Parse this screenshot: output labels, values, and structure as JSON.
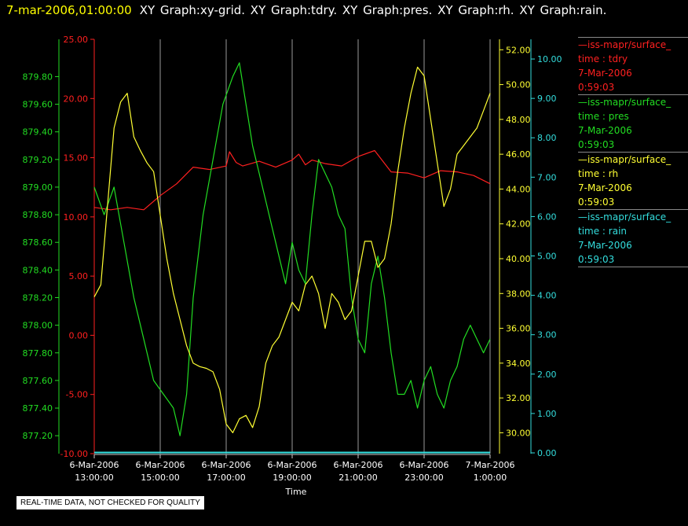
{
  "header": {
    "timestamp": "7-mar-2006,01:00:00",
    "graphs": "XY Graph:xy-grid.  XY Graph:tdry.  XY Graph:pres.  XY Graph:rh.  XY Graph:rain."
  },
  "quality_note": "REAL-TIME DATA, NOT CHECKED FOR QUALITY",
  "legend": [
    {
      "name": "iss-mapr/surface_",
      "field": "time : tdry",
      "date": "7-Mar-2006",
      "time": "0:59:03",
      "color": "#ff2020"
    },
    {
      "name": "iss-mapr/surface_",
      "field": "time : pres",
      "date": "7-Mar-2006",
      "time": "0:59:03",
      "color": "#22dd22"
    },
    {
      "name": "iss-mapr/surface_",
      "field": "time : rh",
      "date": "7-Mar-2006",
      "time": "0:59:03",
      "color": "#ffff33"
    },
    {
      "name": "iss-mapr/surface_",
      "field": "time : rain",
      "date": "7-Mar-2006",
      "time": "0:59:03",
      "color": "#33dddd"
    }
  ],
  "chart_data": {
    "type": "line",
    "xlabel": "Time",
    "x_ticks": [
      {
        "date": "6-Mar-2006",
        "time": "13:00:00"
      },
      {
        "date": "6-Mar-2006",
        "time": "15:00:00"
      },
      {
        "date": "6-Mar-2006",
        "time": "17:00:00"
      },
      {
        "date": "6-Mar-2006",
        "time": "19:00:00"
      },
      {
        "date": "6-Mar-2006",
        "time": "21:00:00"
      },
      {
        "date": "6-Mar-2006",
        "time": "23:00:00"
      },
      {
        "date": "7-Mar-2006",
        "time": "1:00:00"
      }
    ],
    "xlim_hours": [
      13,
      25
    ],
    "grid": "vertical",
    "axes": {
      "pres": {
        "color": "#22dd22",
        "ylim": [
          877.07,
          880.07
        ],
        "ticks": [
          "877.20",
          "877.40",
          "877.60",
          "877.80",
          "878.00",
          "878.20",
          "878.40",
          "878.60",
          "878.80",
          "879.00",
          "879.20",
          "879.40",
          "879.60",
          "879.80"
        ]
      },
      "tdry": {
        "color": "#ff2020",
        "ylim": [
          -10,
          25
        ],
        "ticks": [
          "-10.00",
          "-5.00",
          "0.00",
          "5.00",
          "10.00",
          "15.00",
          "20.00",
          "25.00"
        ]
      },
      "rh": {
        "color": "#ffff33",
        "ylim": [
          28.8,
          52.6
        ],
        "ticks": [
          "30.00",
          "32.00",
          "34.00",
          "36.00",
          "38.00",
          "40.00",
          "42.00",
          "44.00",
          "46.00",
          "48.00",
          "50.00",
          "52.00"
        ]
      },
      "rain": {
        "color": "#33dddd",
        "ylim": [
          -0.02,
          10.5
        ],
        "ticks": [
          "0.00",
          "1.00",
          "2.00",
          "3.00",
          "4.00",
          "5.00",
          "6.00",
          "7.00",
          "8.00",
          "9.00",
          "10.00"
        ]
      }
    },
    "series": [
      {
        "key": "tdry",
        "color": "#ff2020",
        "x": [
          13.0,
          13.5,
          14.0,
          14.5,
          15.0,
          15.5,
          16.0,
          16.5,
          17.0,
          17.1,
          17.3,
          17.5,
          18.0,
          18.5,
          19.0,
          19.2,
          19.4,
          19.6,
          20.0,
          20.5,
          21.0,
          21.5,
          22.0,
          22.5,
          23.0,
          23.5,
          24.0,
          24.5,
          25.0
        ],
        "y": [
          10.8,
          10.6,
          10.8,
          10.6,
          11.8,
          12.8,
          14.2,
          14.0,
          14.3,
          15.5,
          14.6,
          14.3,
          14.7,
          14.2,
          14.8,
          15.3,
          14.4,
          14.8,
          14.5,
          14.3,
          15.1,
          15.6,
          13.8,
          13.7,
          13.3,
          13.9,
          13.8,
          13.5,
          12.8
        ]
      },
      {
        "key": "pres",
        "color": "#22dd22",
        "x": [
          13.0,
          13.3,
          13.6,
          13.9,
          14.2,
          14.5,
          14.8,
          15.1,
          15.4,
          15.6,
          15.8,
          16.0,
          16.3,
          16.6,
          16.9,
          17.2,
          17.4,
          17.6,
          17.8,
          18.0,
          18.2,
          18.4,
          18.6,
          18.8,
          19.0,
          19.2,
          19.4,
          19.6,
          19.8,
          20.0,
          20.2,
          20.4,
          20.6,
          20.8,
          21.0,
          21.2,
          21.4,
          21.6,
          21.8,
          22.0,
          22.2,
          22.4,
          22.6,
          22.8,
          23.0,
          23.2,
          23.4,
          23.6,
          23.8,
          24.0,
          24.2,
          24.4,
          24.6,
          24.8,
          25.0
        ],
        "y": [
          879.0,
          878.8,
          879.0,
          878.6,
          878.2,
          877.9,
          877.6,
          877.5,
          877.4,
          877.2,
          877.5,
          878.2,
          878.8,
          879.2,
          879.6,
          879.8,
          879.9,
          879.6,
          879.3,
          879.1,
          878.9,
          878.7,
          878.5,
          878.3,
          878.6,
          878.4,
          878.3,
          878.8,
          879.2,
          879.1,
          879.0,
          878.8,
          878.7,
          878.2,
          877.9,
          877.8,
          878.3,
          878.5,
          878.2,
          877.8,
          877.5,
          877.5,
          877.6,
          877.4,
          877.6,
          877.7,
          877.5,
          877.4,
          877.6,
          877.7,
          877.9,
          878.0,
          877.9,
          877.8,
          877.9
        ]
      },
      {
        "key": "rh",
        "color": "#ffff33",
        "x": [
          13.0,
          13.2,
          13.4,
          13.6,
          13.8,
          14.0,
          14.2,
          14.4,
          14.6,
          14.8,
          15.0,
          15.2,
          15.4,
          15.6,
          15.8,
          16.0,
          16.2,
          16.4,
          16.6,
          16.8,
          17.0,
          17.2,
          17.4,
          17.6,
          17.8,
          18.0,
          18.2,
          18.4,
          18.6,
          18.8,
          19.0,
          19.2,
          19.4,
          19.6,
          19.8,
          20.0,
          20.2,
          20.4,
          20.6,
          20.8,
          21.0,
          21.2,
          21.4,
          21.6,
          21.8,
          22.0,
          22.2,
          22.4,
          22.6,
          22.8,
          23.0,
          23.2,
          23.4,
          23.6,
          23.8,
          24.0,
          24.2,
          24.4,
          24.6,
          24.8,
          25.0
        ],
        "y": [
          37.8,
          38.5,
          43.0,
          47.5,
          49.0,
          49.5,
          47.0,
          46.2,
          45.5,
          45.0,
          42.5,
          40.0,
          38.0,
          36.5,
          35.0,
          34.0,
          33.8,
          33.7,
          33.5,
          32.5,
          30.5,
          30.0,
          30.8,
          31.0,
          30.3,
          31.5,
          34.0,
          35.0,
          35.5,
          36.5,
          37.5,
          37.0,
          38.5,
          39.0,
          38.0,
          36.0,
          38.0,
          37.5,
          36.5,
          37.0,
          39.0,
          41.0,
          41.0,
          39.5,
          40.0,
          42.0,
          45.0,
          47.5,
          49.5,
          51.0,
          50.5,
          48.0,
          45.5,
          43.0,
          44.0,
          46.0,
          46.5,
          47.0,
          47.5,
          48.5,
          49.5
        ]
      },
      {
        "key": "rain",
        "color": "#33dddd",
        "x": [
          13.0,
          25.0
        ],
        "y": [
          0.0,
          0.0
        ]
      }
    ]
  }
}
